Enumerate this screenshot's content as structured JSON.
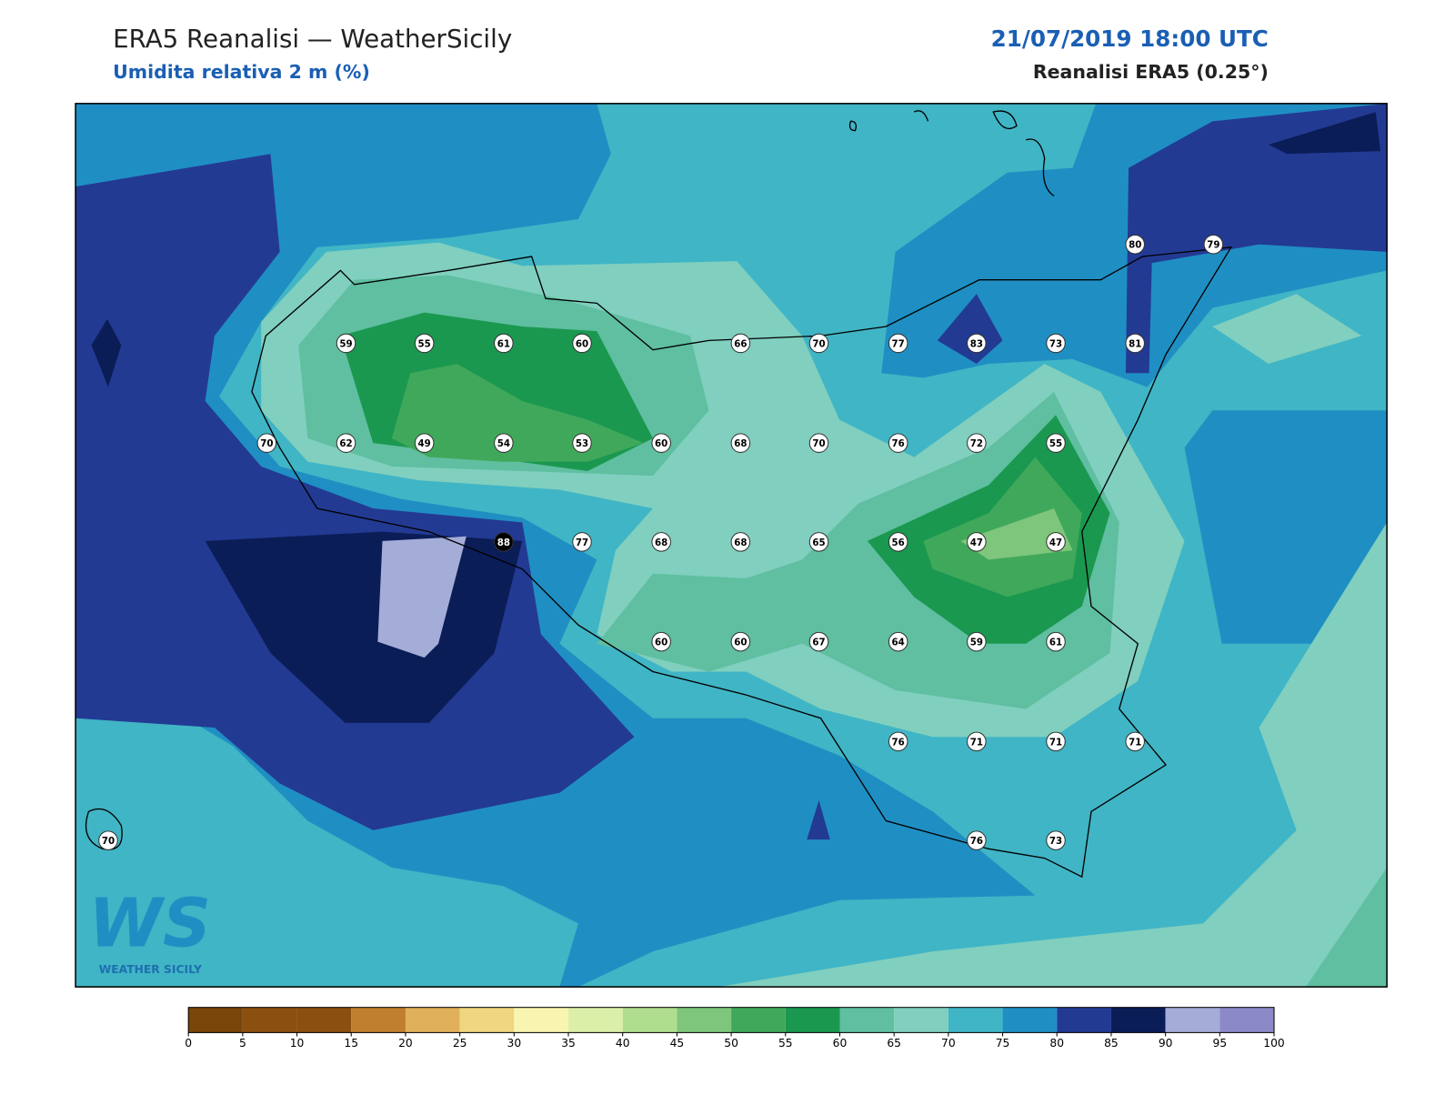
{
  "header": {
    "title": "ERA5 Reanalisi — WeatherSicily",
    "subtitle": "Umidita relativa 2 m (%)",
    "datetime": "21/07/2019 18:00 UTC",
    "source": "Reanalisi ERA5 (0.25°)"
  },
  "stations": [
    80,
    79,
    59,
    55,
    61,
    60,
    66,
    70,
    77,
    83,
    73,
    81,
    70,
    62,
    49,
    54,
    53,
    60,
    68,
    70,
    76,
    72,
    55,
    88,
    77,
    68,
    68,
    65,
    56,
    47,
    47,
    60,
    60,
    67,
    64,
    59,
    61,
    76,
    71,
    71,
    71,
    70,
    76,
    73
  ],
  "logo": {
    "mark": "WS",
    "text": "WEATHER SICILY"
  },
  "colorbar": {
    "ticks": [
      0,
      5,
      10,
      15,
      20,
      25,
      30,
      35,
      40,
      45,
      50,
      55,
      60,
      65,
      70,
      75,
      80,
      85,
      90,
      95,
      100
    ],
    "colors": [
      "#7a4508",
      "#8c500e",
      "#8c500e",
      "#c07f2e",
      "#e0b05a",
      "#f0d67e",
      "#f7f5b0",
      "#dcefa8",
      "#b0de8f",
      "#7dc67b",
      "#40a85a",
      "#1a9850",
      "#5fbfa0",
      "#80cfbf",
      "#40b5c5",
      "#1f8fc3",
      "#233a93",
      "#0b1d57",
      "#a4acd8",
      "#8c89c8"
    ]
  }
}
